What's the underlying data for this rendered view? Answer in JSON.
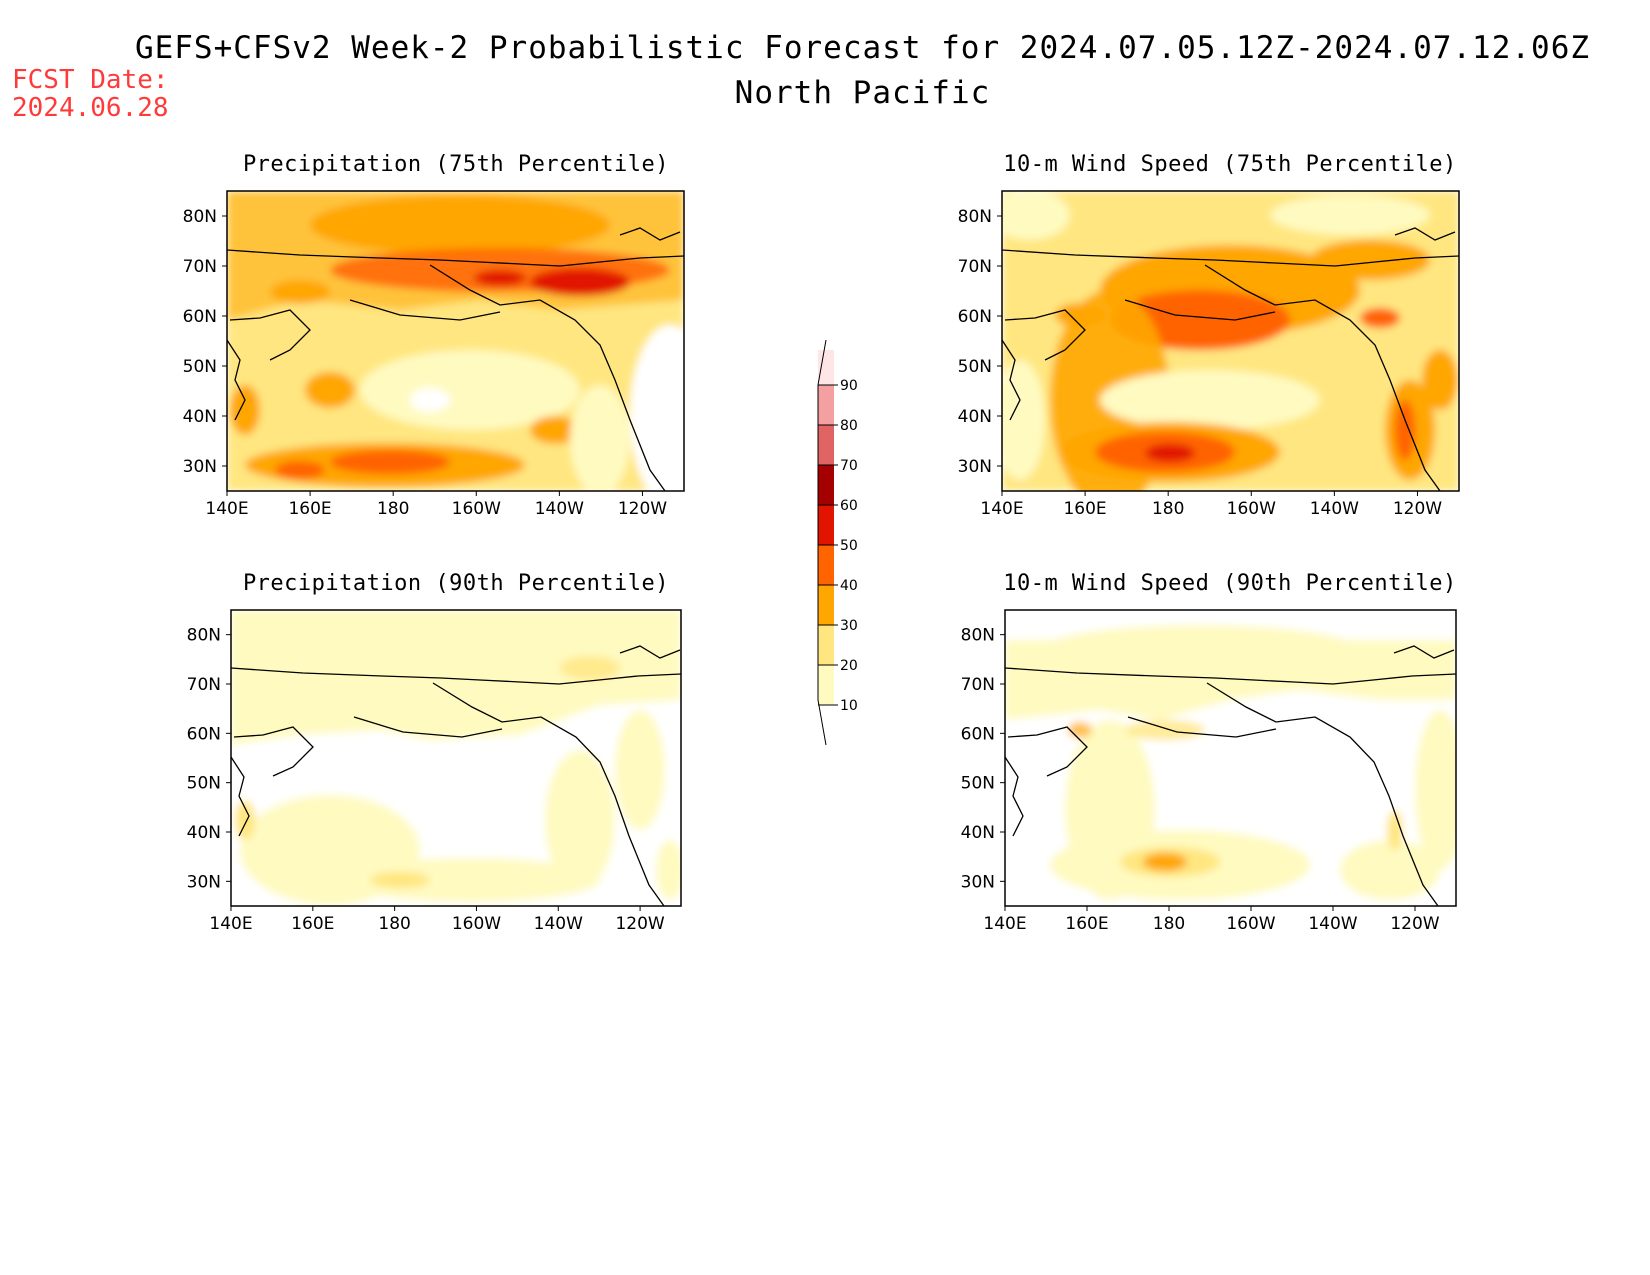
{
  "title": "GEFS+CFSv2 Week-2 Probabilistic Forecast for 2024.07.05.12Z-2024.07.12.06Z",
  "subtitle": "North Pacific",
  "fcst_date_label": "FCST Date:",
  "fcst_date": "2024.06.28",
  "colors": {
    "date_label": "#ff3a3a",
    "scale": [
      "#fffac0",
      "#ffe680",
      "#ffa600",
      "#ff6400",
      "#e11400",
      "#a50000",
      "#e06464",
      "#f5a0a0",
      "#ffe6e6"
    ]
  },
  "colorbar": {
    "levels": [
      "10",
      "20",
      "30",
      "40",
      "50",
      "60",
      "70",
      "80",
      "90"
    ]
  },
  "axes": {
    "lat_labels": [
      "80N",
      "70N",
      "60N",
      "50N",
      "40N",
      "30N"
    ],
    "lon_labels": [
      "140E",
      "160E",
      "180",
      "160W",
      "140W",
      "120W"
    ]
  },
  "panels": [
    {
      "id": "precip-75",
      "title": "Precipitation (75th Percentile)"
    },
    {
      "id": "wind-75",
      "title": "10-m Wind Speed (75th Percentile)"
    },
    {
      "id": "precip-90",
      "title": "Precipitation (90th Percentile)"
    },
    {
      "id": "wind-90",
      "title": "10-m Wind Speed (90th Percentile)"
    }
  ]
}
